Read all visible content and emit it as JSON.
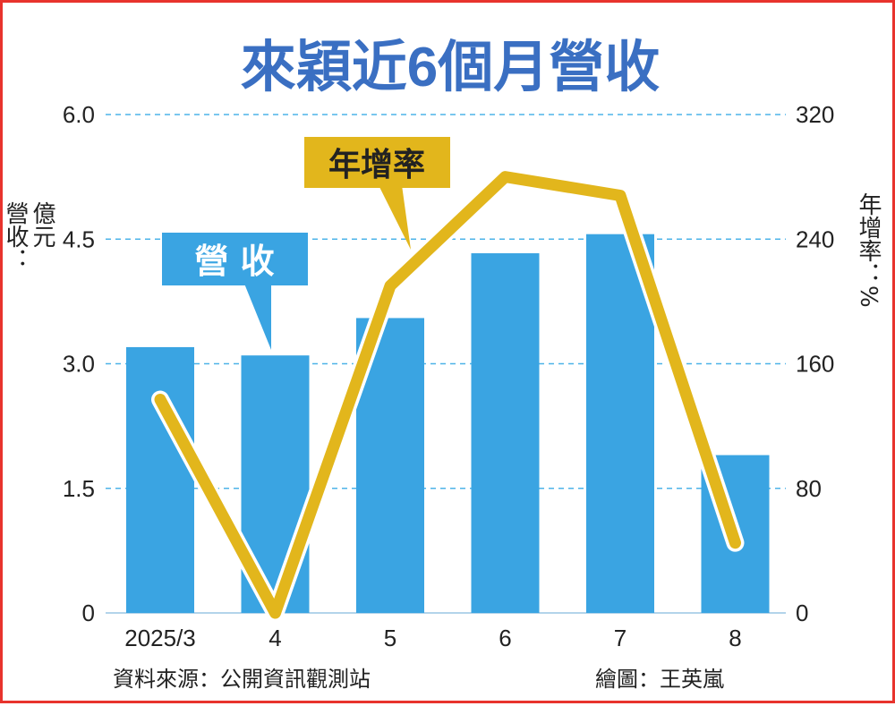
{
  "title": "來穎近6個月營收",
  "colors": {
    "title": "#3a6fc2",
    "bar": "#3aa4e2",
    "line": "#e2b61c",
    "line_outline": "#ffffff",
    "grid": "#4db3e8",
    "frame": "#e8332d",
    "callout_revenue_text": "#ffffff",
    "callout_growth_text": "#222222"
  },
  "callouts": {
    "revenue": "營 收",
    "growth": "年增率"
  },
  "footer": {
    "source": "資料來源：公開資訊觀測站",
    "credit": "繪圖：王英嵐"
  },
  "chart_data": {
    "type": "bar",
    "title": "來穎近6個月營收",
    "categories": [
      "2025/3",
      "4",
      "5",
      "6",
      "7",
      "8"
    ],
    "series": [
      {
        "name": "營收",
        "type": "bar",
        "axis": "left",
        "values": [
          3.2,
          3.1,
          3.55,
          4.33,
          4.56,
          1.9
        ]
      },
      {
        "name": "年增率",
        "type": "line",
        "axis": "right",
        "values": [
          137,
          0,
          210,
          280,
          268,
          45
        ]
      }
    ],
    "y_left": {
      "label": "營收：億元",
      "range": [
        0,
        6
      ],
      "ticks": [
        0,
        1.5,
        3,
        4.5,
        6
      ],
      "tick_labels": [
        "0",
        "1.5",
        "3.0",
        "4.5",
        "6.0"
      ]
    },
    "y_right": {
      "label": "年增率：%",
      "range": [
        0,
        320
      ],
      "ticks": [
        0,
        80,
        160,
        240,
        320
      ],
      "tick_labels": [
        "0",
        "80",
        "160",
        "240",
        "320"
      ]
    },
    "grid": true,
    "grid_style": "dashed"
  }
}
